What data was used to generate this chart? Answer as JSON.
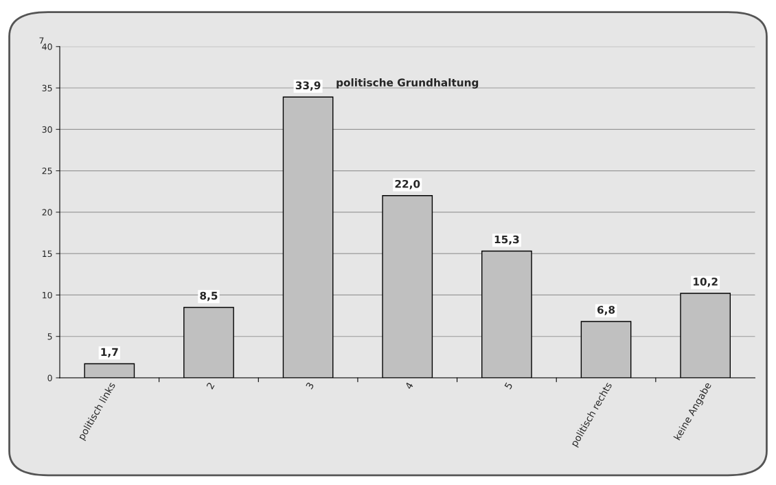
{
  "chart_data": {
    "type": "bar",
    "title": "politische Grundhaltung",
    "categories": [
      "politisch links",
      "2",
      "3",
      "4",
      "5",
      "politisch rechts",
      "keine Angabe"
    ],
    "values": [
      1.7,
      8.5,
      33.9,
      22.0,
      15.3,
      6.8,
      10.2
    ],
    "value_labels": [
      "1,7",
      "8,5",
      "33,9",
      "22,0",
      "15,3",
      "6,8",
      "10,2"
    ],
    "color": "#c0c0c0",
    "ylim": [
      0,
      40
    ],
    "yticks": [
      0,
      5,
      10,
      15,
      20,
      25,
      30,
      35,
      40
    ],
    "grid": "y",
    "annotations": [
      "7"
    ]
  }
}
